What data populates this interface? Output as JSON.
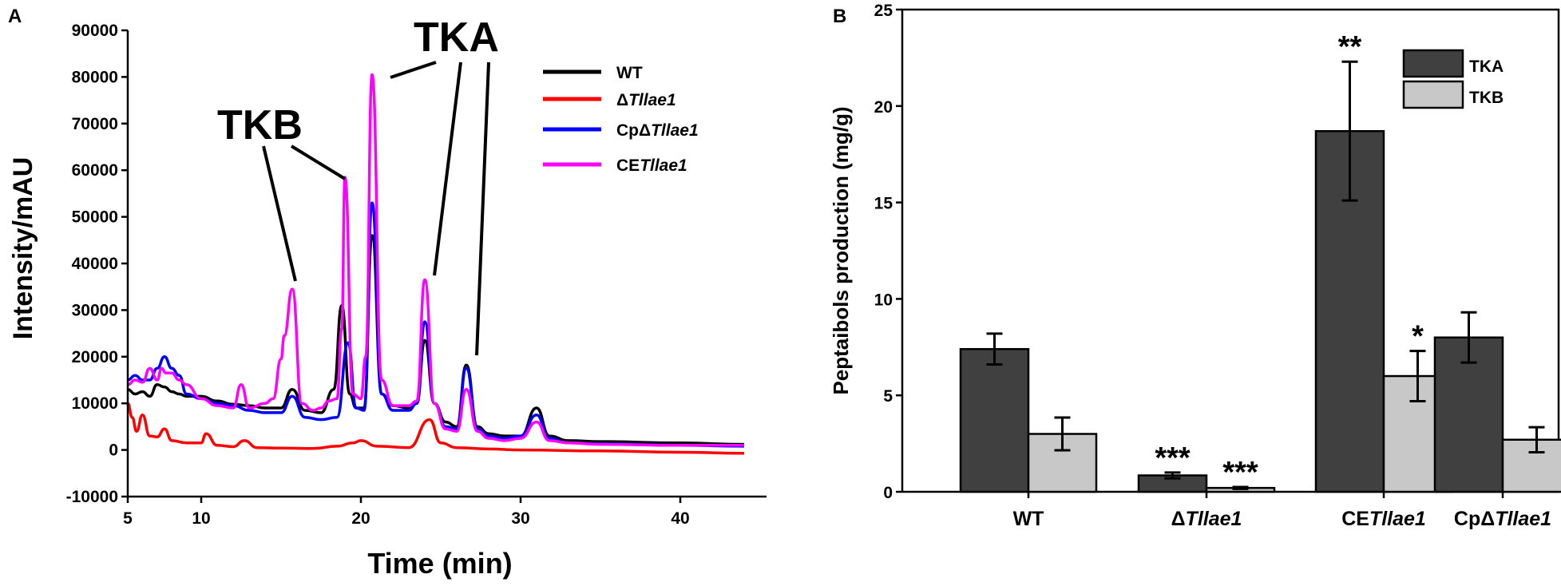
{
  "chart_data": [
    {
      "panel": "A",
      "type": "line",
      "xlabel": "Time (min)",
      "ylabel": "Intensity/mAU",
      "xlim": [
        5,
        45
      ],
      "ylim": [
        -10000,
        90000
      ],
      "xticks": [
        "5",
        "10",
        "20",
        "30",
        "40"
      ],
      "yticks": [
        "-10000",
        "0",
        "10000",
        "20000",
        "30000",
        "40000",
        "50000",
        "60000",
        "70000",
        "80000",
        "90000"
      ],
      "peak_labels": [
        {
          "text": "TKB",
          "points_to": [
            15.7,
            19.0
          ]
        },
        {
          "text": "TKA",
          "points_to": [
            20.7,
            24.0,
            26.6
          ]
        }
      ],
      "legend": [
        {
          "label": "WT",
          "prefix": "WT",
          "italic": "",
          "color": "#000000"
        },
        {
          "label": "ΔTllae1",
          "prefix": "Δ",
          "italic": "Tllae1",
          "color": "#ff0000"
        },
        {
          "label": "CpΔTllae1",
          "prefix": "CpΔ",
          "italic": "Tllae1",
          "color": "#0000ff"
        },
        {
          "label": "CETllae1",
          "prefix": "CE",
          "italic": "Tllae1",
          "color": "#ff00ff"
        }
      ],
      "series": [
        {
          "name": "WT",
          "color": "#000000",
          "x": [
            5,
            5.5,
            6,
            6.5,
            7,
            7.5,
            8,
            8.5,
            9,
            10,
            11,
            12,
            13,
            14,
            15,
            15.7,
            16.5,
            17.5,
            18.3,
            18.8,
            19.3,
            19.7,
            20.2,
            20.7,
            21.3,
            22,
            23,
            23.5,
            24,
            24.6,
            25.3,
            26,
            26.6,
            27.3,
            28,
            29,
            30,
            31,
            31.8,
            33,
            35,
            40,
            44
          ],
          "y": [
            13000,
            12000,
            12500,
            11500,
            14000,
            13500,
            12500,
            12000,
            11500,
            11500,
            10500,
            9800,
            9500,
            9000,
            9000,
            13000,
            8500,
            8000,
            13000,
            31000,
            12000,
            9000,
            9000,
            46000,
            12000,
            9500,
            9000,
            10000,
            23500,
            10000,
            6000,
            5000,
            18200,
            5000,
            3500,
            3000,
            3000,
            9000,
            3000,
            2000,
            1800,
            1500,
            1200
          ]
        },
        {
          "name": "ΔTllae1",
          "color": "#ff0000",
          "x": [
            5,
            5.3,
            5.6,
            6,
            6.5,
            7,
            7.5,
            8,
            9,
            10,
            10.3,
            11,
            12,
            12.7,
            13.5,
            15,
            17,
            18.5,
            19.5,
            20,
            21,
            23,
            24.3,
            25,
            26,
            28,
            30,
            35,
            40,
            44
          ],
          "y": [
            10000,
            7000,
            4000,
            7500,
            3000,
            2800,
            4500,
            2000,
            1500,
            1500,
            3500,
            1000,
            700,
            2000,
            500,
            400,
            300,
            800,
            1500,
            2000,
            800,
            500,
            6500,
            1500,
            500,
            200,
            0,
            -200,
            -500,
            -700
          ]
        },
        {
          "name": "CpΔTllae1",
          "color": "#0000ff",
          "x": [
            5,
            5.5,
            6,
            6.5,
            7,
            7.5,
            8,
            8.5,
            9,
            10,
            11,
            12,
            13,
            14,
            15,
            15.7,
            16.5,
            17.5,
            18.5,
            19.2,
            19.7,
            20.2,
            20.7,
            21.3,
            22,
            23,
            23.5,
            24,
            24.6,
            25.3,
            26,
            26.6,
            27.3,
            28,
            29,
            30,
            31,
            31.8,
            33,
            35,
            40,
            44
          ],
          "y": [
            15000,
            16000,
            15000,
            15000,
            17500,
            20000,
            17500,
            16000,
            12000,
            11000,
            10000,
            9500,
            8500,
            8000,
            8000,
            11500,
            7000,
            6500,
            7000,
            23000,
            9000,
            8500,
            53000,
            12000,
            8500,
            8500,
            10000,
            27500,
            10000,
            5000,
            4500,
            17500,
            4500,
            3000,
            2500,
            3000,
            7500,
            2500,
            1500,
            1300,
            1000,
            800
          ]
        },
        {
          "name": "CETllae1",
          "color": "#ff00ff",
          "x": [
            5,
            5.5,
            6,
            6.5,
            7,
            7.3,
            7.6,
            8,
            8.5,
            9,
            10,
            11,
            12,
            12.5,
            13,
            14,
            14.5,
            15,
            15.2,
            15.7,
            16.3,
            17,
            17.5,
            18,
            18.5,
            18.8,
            19.0,
            19.5,
            20,
            20.3,
            20.7,
            21.3,
            22,
            23,
            23.5,
            24,
            24.6,
            25.3,
            26,
            26.6,
            27.3,
            28,
            29,
            30,
            31,
            31.8,
            33,
            35,
            40,
            44
          ],
          "y": [
            14000,
            15000,
            14500,
            17500,
            15000,
            17500,
            16500,
            16500,
            15000,
            14000,
            11000,
            9500,
            9000,
            14000,
            9000,
            10000,
            11000,
            19500,
            24500,
            34500,
            10000,
            8500,
            9000,
            10500,
            11000,
            26000,
            58500,
            12000,
            11000,
            20000,
            80500,
            15000,
            9500,
            9500,
            10500,
            36500,
            10000,
            4500,
            4000,
            13000,
            4000,
            2500,
            2000,
            2500,
            6000,
            2000,
            1500,
            1200,
            1000,
            1000
          ]
        }
      ]
    },
    {
      "panel": "B",
      "type": "bar",
      "ylabel": "Peptaibols production (mg/g)",
      "ylim": [
        0,
        25
      ],
      "yticks": [
        "0",
        "5",
        "10",
        "15",
        "20",
        "25"
      ],
      "categories": [
        {
          "label": "WT",
          "prefix": "WT",
          "italic": ""
        },
        {
          "label": "ΔTllae1",
          "prefix": "Δ",
          "italic": "Tllae1"
        },
        {
          "label": "CETllae1",
          "prefix": "CE",
          "italic": "Tllae1"
        },
        {
          "label": "CpΔTllae1",
          "prefix": "CpΔ",
          "italic": "Tllae1"
        }
      ],
      "series": [
        {
          "name": "TKA",
          "color": "#404040",
          "values": [
            7.4,
            0.85,
            18.7,
            8.0
          ],
          "errors": [
            0.8,
            0.15,
            3.6,
            1.3
          ],
          "significance": [
            "",
            "***",
            "**",
            ""
          ]
        },
        {
          "name": "TKB",
          "color": "#c8c8c8",
          "values": [
            3.0,
            0.2,
            6.0,
            2.7
          ],
          "errors": [
            0.85,
            0.05,
            1.3,
            0.65
          ],
          "significance": [
            "",
            "***",
            "*",
            ""
          ]
        }
      ]
    }
  ]
}
